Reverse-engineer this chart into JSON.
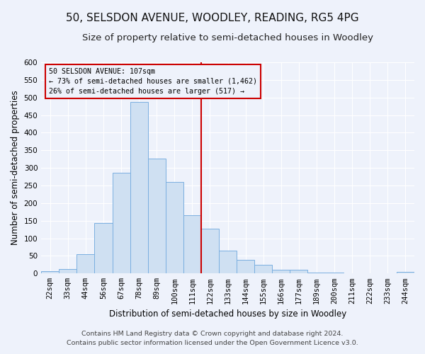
{
  "title": "50, SELSDON AVENUE, WOODLEY, READING, RG5 4PG",
  "subtitle": "Size of property relative to semi-detached houses in Woodley",
  "xlabel": "Distribution of semi-detached houses by size in Woodley",
  "ylabel": "Number of semi-detached properties",
  "categories": [
    "22sqm",
    "33sqm",
    "44sqm",
    "56sqm",
    "67sqm",
    "78sqm",
    "89sqm",
    "100sqm",
    "111sqm",
    "122sqm",
    "133sqm",
    "144sqm",
    "155sqm",
    "166sqm",
    "177sqm",
    "189sqm",
    "200sqm",
    "211sqm",
    "222sqm",
    "233sqm",
    "244sqm"
  ],
  "values": [
    6,
    12,
    54,
    143,
    287,
    487,
    326,
    261,
    165,
    127,
    64,
    38,
    25,
    11,
    10,
    3,
    2,
    1,
    0,
    0,
    5
  ],
  "bar_color": "#cfe0f2",
  "bar_edge_color": "#7aafe0",
  "vline_color": "#cc0000",
  "annotation_text": "50 SELSDON AVENUE: 107sqm\n← 73% of semi-detached houses are smaller (1,462)\n26% of semi-detached houses are larger (517) →",
  "annotation_box_color": "#cc0000",
  "ylim": [
    0,
    600
  ],
  "yticks": [
    0,
    50,
    100,
    150,
    200,
    250,
    300,
    350,
    400,
    450,
    500,
    550,
    600
  ],
  "footer_line1": "Contains HM Land Registry data © Crown copyright and database right 2024.",
  "footer_line2": "Contains public sector information licensed under the Open Government Licence v3.0.",
  "background_color": "#eef2fb",
  "grid_color": "#ffffff",
  "title_fontsize": 11,
  "subtitle_fontsize": 9.5,
  "axis_label_fontsize": 8.5,
  "tick_fontsize": 7.5,
  "footer_fontsize": 6.8,
  "vline_index": 8.5
}
